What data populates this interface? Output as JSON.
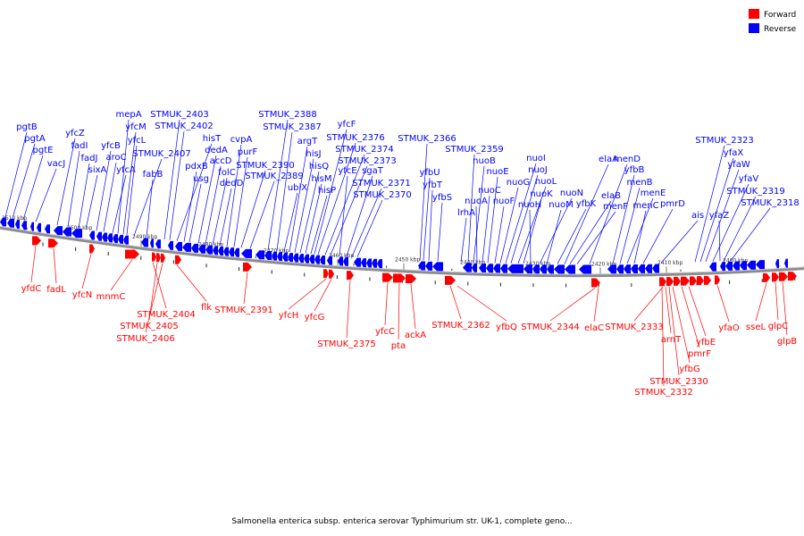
{
  "legend": [
    {
      "label": "Forward",
      "color": "#ff0000"
    },
    {
      "label": "Reverse",
      "color": "#0000ff"
    }
  ],
  "caption": "Salmonella enterica subsp. enterica serovar Typhimurium str. UK-1, complete geno...",
  "ticks": [
    "2510 kbp",
    "2500 kbp",
    "2490 kbp",
    "2480 kbp",
    "2470 kbp",
    "2460 kbp",
    "2450 kbp",
    "2440 kbp",
    "2430 kbp",
    "2420 kbp",
    "2410 kbp",
    "2400 kbp"
  ],
  "reverse_genes": [
    "pgtB",
    "pgtA",
    "pgtE",
    "vacJ",
    "yfcZ",
    "fadI",
    "fadJ",
    "sixA",
    "yfcB",
    "aroC",
    "yfcA",
    "mepA",
    "yfcM",
    "yfcL",
    "STMUK_2407",
    "fabB",
    "STMUK_2403",
    "STMUK_2402",
    "hisT",
    "pdxB",
    "usg",
    "dedA",
    "accD",
    "folC",
    "dedD",
    "cvpA",
    "purF",
    "STMUK_2390",
    "STMUK_2389",
    "STMUK_2388",
    "STMUK_2387",
    "ubiX",
    "argT",
    "hisJ",
    "hisQ",
    "hisM",
    "hisP",
    "yfcF",
    "STMUK_2376",
    "STMUK_2374",
    "STMUK_2373",
    "yfcE",
    "sgaT",
    "STMUK_2371",
    "STMUK_2370",
    "STMUK_2366",
    "yfbU",
    "yfbT",
    "yfbS",
    "lrhA",
    "STMUK_2359",
    "nuoB",
    "nuoA",
    "nuoC",
    "nuoE",
    "nuoF",
    "nuoG",
    "nuoI",
    "nuoJ",
    "nuoL",
    "nuoK",
    "nuoH",
    "nuoN",
    "nuoM",
    "yfbK",
    "elaA",
    "elaB",
    "menF",
    "menD",
    "yfbB",
    "menB",
    "menE",
    "menC",
    "pmrD",
    "ais",
    "STMUK_2323",
    "yfaX",
    "yfaW",
    "yfaV",
    "yfaZ",
    "STMUK_2319",
    "STMUK_2318"
  ],
  "forward_genes": [
    "yfdC",
    "fadL",
    "yfcN",
    "mnmC",
    "STMUK_2404",
    "STMUK_2405",
    "STMUK_2406",
    "flk",
    "STMUK_2391",
    "yfcH",
    "yfcG",
    "STMUK_2375",
    "yfcC",
    "pta",
    "ackA",
    "STMUK_2362",
    "yfbQ",
    "STMUK_2344",
    "elaC",
    "STMUK_2333",
    "arnT",
    "yfbG",
    "STMUK_2330",
    "STMUK_2332",
    "pmrF",
    "yfbE",
    "yfaO",
    "sseL",
    "glpC",
    "glpB"
  ]
}
